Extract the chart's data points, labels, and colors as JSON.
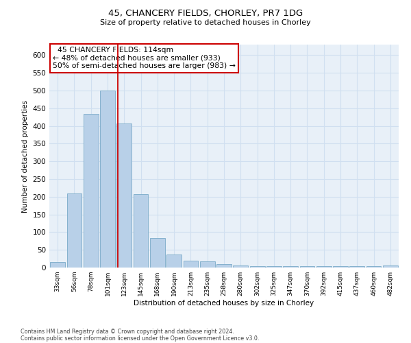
{
  "title1": "45, CHANCERY FIELDS, CHORLEY, PR7 1DG",
  "title2": "Size of property relative to detached houses in Chorley",
  "xlabel": "Distribution of detached houses by size in Chorley",
  "ylabel": "Number of detached properties",
  "footnote1": "Contains HM Land Registry data © Crown copyright and database right 2024.",
  "footnote2": "Contains public sector information licensed under the Open Government Licence v3.0.",
  "bar_labels": [
    "33sqm",
    "56sqm",
    "78sqm",
    "101sqm",
    "123sqm",
    "145sqm",
    "168sqm",
    "190sqm",
    "213sqm",
    "235sqm",
    "258sqm",
    "280sqm",
    "302sqm",
    "325sqm",
    "347sqm",
    "370sqm",
    "392sqm",
    "415sqm",
    "437sqm",
    "460sqm",
    "482sqm"
  ],
  "bar_values": [
    15,
    210,
    435,
    500,
    408,
    207,
    83,
    37,
    20,
    17,
    10,
    5,
    4,
    4,
    4,
    4,
    4,
    4,
    4,
    4,
    5
  ],
  "bar_color": "#b8d0e8",
  "bar_edge_color": "#7aaac8",
  "grid_color": "#d0dff0",
  "bg_color": "#e8f0f8",
  "red_line_x": 3.62,
  "annotation_text": "  45 CHANCERY FIELDS: 114sqm  \n← 48% of detached houses are smaller (933)\n50% of semi-detached houses are larger (983) →",
  "annotation_box_facecolor": "#ffffff",
  "annotation_border_color": "#cc0000",
  "ylim_max": 630,
  "yticks": [
    0,
    50,
    100,
    150,
    200,
    250,
    300,
    350,
    400,
    450,
    500,
    550,
    600
  ]
}
